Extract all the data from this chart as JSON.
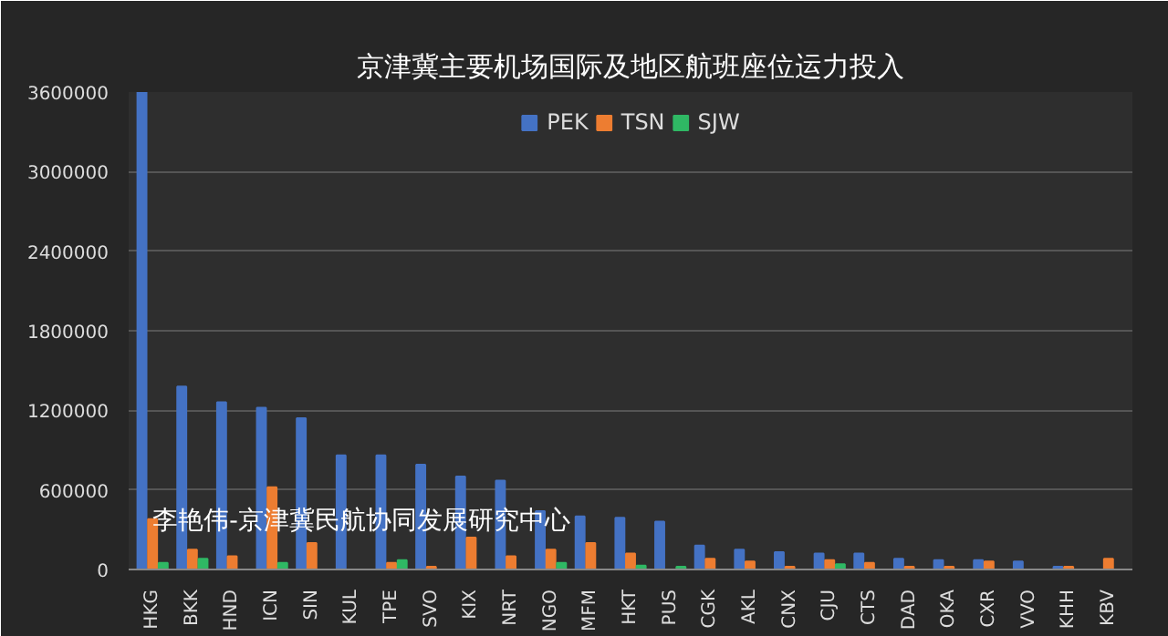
{
  "chart_data": {
    "type": "bar",
    "title": "京津冀主要机场国际及地区航班座位运力投入",
    "categories": [
      "HKG",
      "BKK",
      "HND",
      "ICN",
      "SIN",
      "KUL",
      "TPE",
      "SVO",
      "KIX",
      "NRT",
      "NGO",
      "MFM",
      "HKT",
      "PUS",
      "CGK",
      "AKL",
      "CNX",
      "CJU",
      "CTS",
      "DAD",
      "OKA",
      "CXR",
      "VVO",
      "KHH",
      "KBV"
    ],
    "series": [
      {
        "name": "PEK",
        "color": "#4472c4",
        "values": [
          3600000,
          1380000,
          1260000,
          1220000,
          1140000,
          860000,
          860000,
          790000,
          700000,
          670000,
          440000,
          400000,
          390000,
          360000,
          180000,
          150000,
          130000,
          120000,
          120000,
          80000,
          70000,
          70000,
          60000,
          20000,
          0
        ]
      },
      {
        "name": "TSN",
        "color": "#ed7d31",
        "values": [
          380000,
          150000,
          100000,
          620000,
          200000,
          0,
          50000,
          20000,
          240000,
          100000,
          150000,
          200000,
          120000,
          0,
          80000,
          60000,
          20000,
          70000,
          50000,
          20000,
          20000,
          60000,
          0,
          20000,
          80000
        ]
      },
      {
        "name": "SJW",
        "color": "#2fb864",
        "values": [
          50000,
          80000,
          0,
          50000,
          0,
          0,
          70000,
          0,
          0,
          0,
          50000,
          0,
          30000,
          20000,
          0,
          0,
          0,
          40000,
          0,
          0,
          0,
          0,
          0,
          0,
          0
        ]
      }
    ],
    "ylim": [
      0,
      3600000
    ],
    "yticks": [
      0,
      600000,
      1200000,
      1800000,
      2400000,
      3000000,
      3600000
    ],
    "grid": "y",
    "legend": "top",
    "annotations": [
      "李艳伟-京津冀民航协同发展研究中心"
    ]
  }
}
